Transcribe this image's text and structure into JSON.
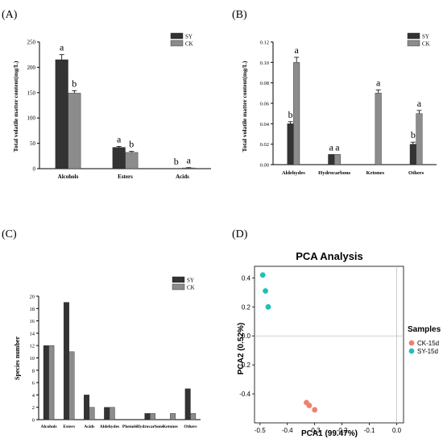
{
  "colors": {
    "sy": "#333333",
    "ck": "#8c8c8c",
    "ck15": "#ef7f73",
    "sy15": "#1ec0bd",
    "axis": "#000000",
    "refline": "#bfbfbf"
  },
  "chart_data": [
    {
      "panel": "(A)",
      "type": "bar",
      "ylabel": "Total volatile matter content(mg/L)",
      "categories": [
        "Alcohols",
        "Esters",
        "Acids"
      ],
      "ylim": [
        0,
        250
      ],
      "yticks": [
        "0",
        "50",
        "100",
        "150",
        "200",
        "250"
      ],
      "series": [
        {
          "name": "SY",
          "values": [
            215,
            42,
            0
          ],
          "errors": [
            10,
            2,
            0
          ],
          "labels": [
            "a",
            "a",
            "b"
          ]
        },
        {
          "name": "CK",
          "values": [
            149,
            32,
            1.5
          ],
          "errors": [
            5,
            2,
            0.5
          ],
          "labels": [
            "b",
            "b",
            "a"
          ]
        }
      ]
    },
    {
      "panel": "(B)",
      "type": "bar",
      "ylabel": "Total volatile matter content(mg/L)",
      "categories": [
        "Aldehydes",
        "Hydrocarbons",
        "Ketones",
        "Others"
      ],
      "ylim": [
        0,
        0.12
      ],
      "yticks": [
        "0.00",
        "0.02",
        "0.04",
        "0.06",
        "0.08",
        "0.10",
        "0.12"
      ],
      "series": [
        {
          "name": "SY",
          "values": [
            0.04,
            0.01,
            0,
            0.02
          ],
          "errors": [
            0.002,
            0,
            0,
            0.002
          ],
          "labels": [
            "b",
            "a",
            "",
            "b"
          ]
        },
        {
          "name": "CK",
          "values": [
            0.1,
            0.01,
            0.07,
            0.05
          ],
          "errors": [
            0.005,
            0,
            0.003,
            0.003
          ],
          "labels": [
            "a",
            "a",
            "a",
            "a"
          ]
        }
      ]
    },
    {
      "panel": "(C)",
      "type": "bar",
      "ylabel": "Species number",
      "categories": [
        "Alcohols",
        "Esters",
        "Acids",
        "Aldehydes",
        "Phenols",
        "Hydrocarbons",
        "Ketones",
        "Others"
      ],
      "ylim": [
        0,
        20
      ],
      "yticks": [
        "0",
        "2",
        "4",
        "6",
        "8",
        "10",
        "12",
        "14",
        "16",
        "18",
        "20"
      ],
      "series": [
        {
          "name": "SY",
          "values": [
            12,
            19,
            4,
            2,
            0,
            1,
            0,
            5
          ]
        },
        {
          "name": "CK",
          "values": [
            12,
            11,
            2,
            2,
            0,
            1,
            1,
            1
          ]
        }
      ]
    },
    {
      "panel": "(D)",
      "type": "scatter",
      "title": "PCA Analysis",
      "xlabel": "PCA1 (99.47%)",
      "ylabel": "PCA2 (0.52%)",
      "xlim": [
        -0.52,
        0.025
      ],
      "ylim": [
        -0.6,
        0.48
      ],
      "xticks": [
        "-0.5",
        "-0.4",
        "-0.3",
        "-0.2",
        "-0.1",
        "0.0"
      ],
      "yticks": [
        "-0.4",
        "-0.2",
        "0.0",
        "0.2",
        "0.4"
      ],
      "legend_title": "Samples",
      "series": [
        {
          "name": "CK-15d",
          "points": [
            [
              -0.33,
              -0.46
            ],
            [
              -0.32,
              -0.48
            ],
            [
              -0.3,
              -0.51
            ]
          ]
        },
        {
          "name": "SY-15d",
          "points": [
            [
              -0.49,
              0.42
            ],
            [
              -0.48,
              0.31
            ],
            [
              -0.47,
              0.2
            ]
          ]
        }
      ]
    }
  ]
}
